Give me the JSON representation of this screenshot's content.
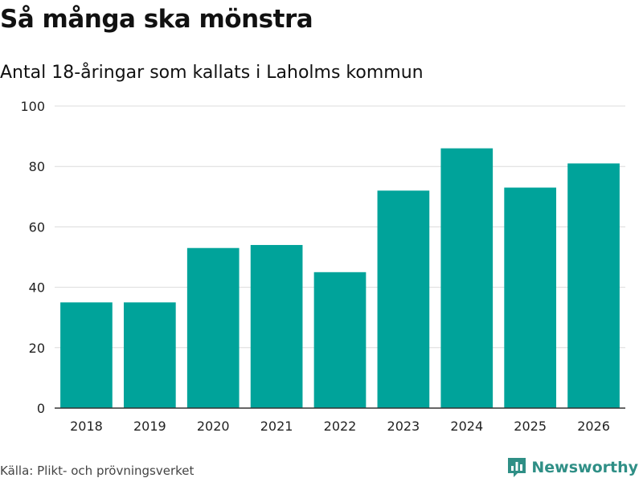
{
  "header": {
    "title": "Så många ska mönstra",
    "subtitle": "Antal 18-åringar som kallats i Laholms kommun"
  },
  "footer": {
    "source": "Källa: Plikt- och prövningsverket",
    "brand": "Newsworthy",
    "brand_icon": "bar-chart-logo-icon"
  },
  "colors": {
    "bar": "#00a39a",
    "grid": "#dcdcdc",
    "axis": "#333333",
    "brand": "#2f8f86"
  },
  "chart_data": {
    "type": "bar",
    "title": "Så många ska mönstra",
    "subtitle": "Antal 18-åringar som kallats i Laholms kommun",
    "xlabel": "",
    "ylabel": "",
    "categories": [
      "2018",
      "2019",
      "2020",
      "2021",
      "2022",
      "2023",
      "2024",
      "2025",
      "2026"
    ],
    "values": [
      35,
      35,
      53,
      54,
      45,
      72,
      86,
      73,
      81
    ],
    "ylim": [
      0,
      100
    ],
    "yticks": [
      0,
      20,
      40,
      60,
      80,
      100
    ],
    "grid": true
  }
}
